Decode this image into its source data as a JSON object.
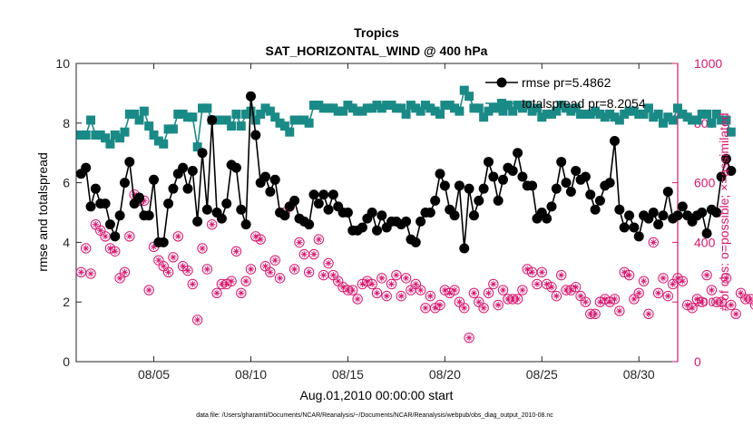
{
  "chart_data": {
    "type": "line",
    "title": "Tropics",
    "subtitle": "SAT_HORIZONTAL_WIND @ 400 hPa",
    "xlabel": "Aug.01,2010 00:00:00 start",
    "ylabel": "rmse and totalspread",
    "y2label": "# of obs: o=possible; ×=assimilated",
    "footnote": "data file: /Users/gharamti/Documents/NCAR/Reanalysis/~/Documents/NCAR/Reanalysis/webpub/obs_diag_output_2010-08.nc",
    "xlim": [
      1,
      32
    ],
    "ylim": [
      0,
      10
    ],
    "y2lim": [
      0,
      1000
    ],
    "xticks": [
      5,
      10,
      15,
      20,
      25,
      30
    ],
    "xticklabels": [
      "08/05",
      "08/10",
      "08/15",
      "08/20",
      "08/25",
      "08/30"
    ],
    "yticks": [
      0,
      2,
      4,
      6,
      8,
      10
    ],
    "yticklabels": [
      "0",
      "2",
      "4",
      "6",
      "8",
      "10"
    ],
    "y2ticks": [
      0,
      200,
      400,
      600,
      800,
      1000
    ],
    "y2ticklabels": [
      "0",
      "200",
      "400",
      "600",
      "800",
      "1000"
    ],
    "legend_position": "top-right",
    "colors": {
      "rmse": "#000000",
      "totalspread": "#1a8a87",
      "obs": "#d6186f",
      "axis2": "#d6186f"
    },
    "series": [
      {
        "name": "rmse",
        "legend_label": "rmse pr=5.4862",
        "start": 1.25,
        "step": 0.25,
        "values": [
          6.3,
          6.5,
          5.2,
          5.8,
          5.3,
          5.3,
          4.6,
          4.2,
          4.9,
          6.0,
          6.7,
          5.3,
          5.5,
          4.9,
          4.9,
          6.1,
          4.0,
          4.0,
          5.3,
          5.8,
          6.3,
          6.5,
          5.8,
          6.4,
          4.7,
          7.0,
          5.1,
          8.1,
          5.0,
          4.8,
          5.3,
          6.6,
          6.5,
          5.1,
          4.6,
          8.9,
          7.6,
          6.0,
          6.2,
          5.7,
          6.1,
          5.0,
          4.9,
          5.2,
          5.4,
          4.8,
          4.7,
          4.6,
          5.6,
          5.3,
          5.6,
          5.1,
          5.6,
          5.2,
          5.0,
          5.0,
          4.4,
          4.4,
          4.5,
          4.8,
          5.0,
          4.4,
          4.9,
          4.5,
          4.7,
          4.7,
          4.6,
          4.7,
          4.1,
          4.0,
          4.7,
          5.0,
          5.0,
          5.4,
          6.3,
          5.9,
          5.1,
          4.9,
          5.9,
          3.8,
          5.8,
          4.9,
          5.4,
          5.8,
          6.7,
          6.2,
          5.4,
          6.1,
          6.5,
          6.4,
          7.0,
          6.2,
          5.9,
          5.9,
          4.8,
          5.0,
          4.8,
          5.2,
          5.8,
          6.7,
          6.0,
          5.7,
          6.4,
          6.1,
          6.2,
          5.6,
          5.1,
          5.4,
          5.9,
          6.0,
          7.4,
          5.1,
          4.5,
          4.9,
          4.5,
          4.2,
          4.9,
          4.8,
          5.0,
          4.6,
          4.9,
          5.7,
          4.8,
          4.9,
          5.2,
          4.9,
          4.7,
          4.9,
          5.0,
          4.3,
          5.1,
          5.0,
          6.2,
          6.8,
          6.4
        ]
      },
      {
        "name": "totalspread",
        "legend_label": "totalspread pr=8.2054",
        "start": 1.25,
        "step": 0.25,
        "values": [
          7.6,
          7.6,
          8.1,
          7.6,
          7.6,
          7.5,
          7.3,
          7.6,
          7.5,
          7.7,
          8.3,
          8.3,
          8.1,
          8.4,
          7.9,
          7.6,
          7.4,
          7.3,
          7.8,
          7.8,
          8.3,
          8.3,
          8.2,
          8.2,
          7.2,
          8.5,
          8.5,
          8.1,
          8.1,
          8.1,
          8.1,
          7.9,
          8.3,
          7.9,
          8.3,
          8.4,
          8.1,
          8.3,
          8.5,
          8.4,
          8.2,
          8.0,
          7.9,
          7.7,
          8.1,
          8.1,
          8.1,
          8.0,
          8.6,
          8.6,
          8.5,
          8.5,
          8.5,
          8.4,
          8.4,
          8.6,
          8.5,
          8.4,
          8.4,
          8.5,
          8.5,
          8.6,
          8.5,
          8.6,
          8.6,
          8.5,
          8.5,
          8.3,
          8.6,
          8.5,
          8.4,
          8.6,
          8.5,
          8.4,
          8.3,
          8.6,
          8.6,
          8.5,
          8.4,
          9.1,
          8.9,
          8.5,
          8.5,
          8.2,
          8.4,
          8.5,
          8.5,
          8.4,
          8.6,
          8.4,
          8.6,
          8.5,
          8.6,
          8.4,
          8.5,
          8.2,
          8.3,
          8.3,
          8.4,
          8.6,
          8.5,
          8.4,
          8.5,
          8.3,
          8.3,
          8.3,
          8.4,
          8.3,
          8.2,
          8.3,
          8.2,
          8.1,
          8.3,
          8.4,
          8.4,
          8.3,
          8.3,
          8.5,
          8.2,
          8.3,
          8.0,
          8.2,
          8.1,
          8.5,
          8.3,
          8.2,
          8.1,
          8.1,
          8.3,
          8.3,
          8.0,
          8.3,
          8.1,
          8.1,
          7.7
        ]
      },
      {
        "name": "obs_possible",
        "axis": "right",
        "start": 1.25,
        "step": 0.25,
        "values": [
          300,
          380,
          295,
          460,
          440,
          420,
          380,
          370,
          280,
          300,
          420,
          560,
          540,
          540,
          240,
          385,
          340,
          320,
          300,
          350,
          420,
          320,
          305,
          260,
          140,
          380,
          310,
          460,
          230,
          260,
          260,
          270,
          370,
          230,
          270,
          310,
          420,
          410,
          320,
          300,
          340,
          280,
          500,
          520,
          310,
          400,
          360,
          300,
          360,
          410,
          290,
          330,
          290,
          270,
          250,
          240,
          240,
          210,
          260,
          270,
          260,
          230,
          280,
          220,
          260,
          290,
          220,
          280,
          240,
          260,
          240,
          180,
          220,
          180,
          190,
          240,
          230,
          240,
          200,
          180,
          80,
          230,
          200,
          180,
          230,
          260,
          190,
          240,
          210,
          210,
          210,
          240,
          310,
          300,
          260,
          300,
          260,
          250,
          220,
          290,
          240,
          240,
          250,
          220,
          200,
          160,
          160,
          200,
          210,
          200,
          210,
          170,
          300,
          290,
          210,
          230,
          270,
          160,
          400,
          230,
          280,
          220,
          260,
          280,
          270,
          190,
          180,
          210,
          200,
          290,
          240,
          200,
          200,
          280,
          190,
          160,
          230,
          210,
          210,
          190,
          140,
          150,
          160,
          220,
          170,
          160,
          140,
          130,
          130,
          190,
          0
        ]
      }
    ]
  }
}
